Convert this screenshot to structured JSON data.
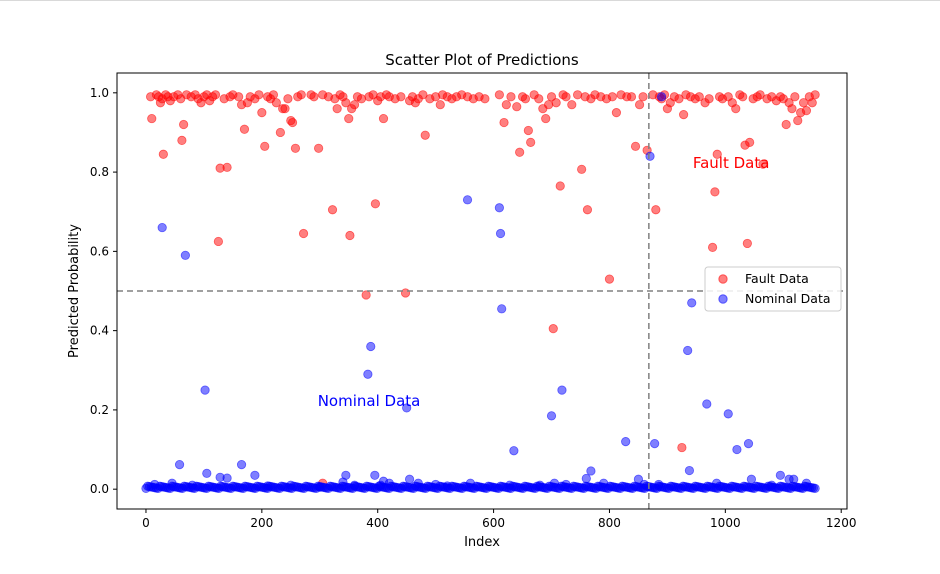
{
  "chart_data": {
    "type": "scatter",
    "title": "Scatter Plot of Predictions",
    "xlabel": "Index",
    "ylabel": "Predicted Probability",
    "xlim": [
      -50,
      1210
    ],
    "ylim": [
      -0.05,
      1.05
    ],
    "x_ticks": [
      0,
      200,
      400,
      600,
      800,
      1000,
      1200
    ],
    "y_ticks": [
      0.0,
      0.2,
      0.4,
      0.6,
      0.8,
      1.0
    ],
    "x_tick_labels": [
      "0",
      "200",
      "400",
      "600",
      "800",
      "1000",
      "1200"
    ],
    "y_tick_labels": [
      "0.0",
      "0.2",
      "0.4",
      "0.6",
      "0.8",
      "1.0"
    ],
    "threshold_y": 0.5,
    "split_x": 868,
    "annotations": [
      {
        "text": "Fault Data",
        "x": 1010,
        "y": 0.81,
        "color": "#ff0000"
      },
      {
        "text": "Nominal Data",
        "x": 385,
        "y": 0.21,
        "color": "#0000ff"
      }
    ],
    "legend": {
      "position": "center-right"
    },
    "grid": false,
    "series": [
      {
        "name": "Fault Data",
        "color": "#ff0000",
        "points": [
          [
            8,
            0.99
          ],
          [
            10,
            0.935
          ],
          [
            18,
            0.995
          ],
          [
            22,
            0.99
          ],
          [
            25,
            0.975
          ],
          [
            28,
            0.985
          ],
          [
            30,
            0.845
          ],
          [
            34,
            0.995
          ],
          [
            38,
            0.99
          ],
          [
            42,
            0.98
          ],
          [
            48,
            0.99
          ],
          [
            55,
            0.995
          ],
          [
            60,
            0.985
          ],
          [
            62,
            0.88
          ],
          [
            65,
            0.92
          ],
          [
            70,
            0.995
          ],
          [
            78,
            0.99
          ],
          [
            85,
            0.995
          ],
          [
            90,
            0.985
          ],
          [
            95,
            0.975
          ],
          [
            100,
            0.99
          ],
          [
            105,
            0.995
          ],
          [
            110,
            0.98
          ],
          [
            115,
            0.99
          ],
          [
            120,
            0.995
          ],
          [
            125,
            0.625
          ],
          [
            128,
            0.81
          ],
          [
            135,
            0.985
          ],
          [
            140,
            0.812
          ],
          [
            145,
            0.99
          ],
          [
            150,
            0.995
          ],
          [
            160,
            0.99
          ],
          [
            165,
            0.97
          ],
          [
            170,
            0.908
          ],
          [
            175,
            0.975
          ],
          [
            180,
            0.99
          ],
          [
            188,
            0.985
          ],
          [
            195,
            0.995
          ],
          [
            200,
            0.95
          ],
          [
            205,
            0.865
          ],
          [
            210,
            0.99
          ],
          [
            215,
            0.985
          ],
          [
            220,
            0.995
          ],
          [
            225,
            0.975
          ],
          [
            232,
            0.9
          ],
          [
            236,
            0.96
          ],
          [
            240,
            0.96
          ],
          [
            245,
            0.985
          ],
          [
            250,
            0.93
          ],
          [
            253,
            0.925
          ],
          [
            258,
            0.86
          ],
          [
            262,
            0.99
          ],
          [
            268,
            0.995
          ],
          [
            272,
            0.645
          ],
          [
            285,
            0.995
          ],
          [
            290,
            0.99
          ],
          [
            298,
            0.86
          ],
          [
            305,
            0.995
          ],
          [
            315,
            0.99
          ],
          [
            322,
            0.705
          ],
          [
            326,
            0.985
          ],
          [
            330,
            0.96
          ],
          [
            335,
            0.995
          ],
          [
            340,
            0.99
          ],
          [
            345,
            0.975
          ],
          [
            350,
            0.935
          ],
          [
            352,
            0.64
          ],
          [
            355,
            0.96
          ],
          [
            360,
            0.97
          ],
          [
            365,
            0.99
          ],
          [
            372,
            0.985
          ],
          [
            380,
            0.49
          ],
          [
            385,
            0.99
          ],
          [
            392,
            0.995
          ],
          [
            396,
            0.72
          ],
          [
            400,
            0.98
          ],
          [
            405,
            0.99
          ],
          [
            410,
            0.935
          ],
          [
            415,
            0.995
          ],
          [
            420,
            0.99
          ],
          [
            430,
            0.985
          ],
          [
            440,
            0.99
          ],
          [
            448,
            0.495
          ],
          [
            455,
            0.98
          ],
          [
            460,
            0.99
          ],
          [
            465,
            0.975
          ],
          [
            470,
            0.985
          ],
          [
            478,
            0.995
          ],
          [
            482,
            0.893
          ],
          [
            490,
            0.985
          ],
          [
            500,
            0.99
          ],
          [
            508,
            0.97
          ],
          [
            512,
            0.995
          ],
          [
            520,
            0.99
          ],
          [
            528,
            0.985
          ],
          [
            536,
            0.99
          ],
          [
            545,
            0.995
          ],
          [
            555,
            0.99
          ],
          [
            565,
            0.985
          ],
          [
            575,
            0.99
          ],
          [
            585,
            0.985
          ],
          [
            305,
            0.015
          ],
          [
            610,
            0.995
          ],
          [
            618,
            0.925
          ],
          [
            622,
            0.97
          ],
          [
            630,
            0.99
          ],
          [
            640,
            0.965
          ],
          [
            645,
            0.85
          ],
          [
            650,
            0.99
          ],
          [
            655,
            0.985
          ],
          [
            660,
            0.905
          ],
          [
            664,
            0.875
          ],
          [
            670,
            0.995
          ],
          [
            678,
            0.985
          ],
          [
            685,
            0.96
          ],
          [
            690,
            0.935
          ],
          [
            695,
            0.97
          ],
          [
            700,
            0.99
          ],
          [
            703,
            0.405
          ],
          [
            708,
            0.975
          ],
          [
            715,
            0.765
          ],
          [
            720,
            0.995
          ],
          [
            725,
            0.99
          ],
          [
            735,
            0.97
          ],
          [
            745,
            0.995
          ],
          [
            752,
            0.807
          ],
          [
            758,
            0.99
          ],
          [
            762,
            0.705
          ],
          [
            768,
            0.985
          ],
          [
            775,
            0.995
          ],
          [
            785,
            0.99
          ],
          [
            795,
            0.985
          ],
          [
            800,
            0.53
          ],
          [
            805,
            0.99
          ],
          [
            812,
            0.95
          ],
          [
            820,
            0.995
          ],
          [
            830,
            0.99
          ],
          [
            838,
            0.99
          ],
          [
            845,
            0.865
          ],
          [
            852,
            0.97
          ],
          [
            858,
            0.99
          ],
          [
            865,
            0.855
          ],
          [
            875,
            0.995
          ],
          [
            880,
            0.705
          ],
          [
            886,
            0.99
          ],
          [
            890,
            0.985
          ],
          [
            895,
            0.995
          ],
          [
            900,
            0.96
          ],
          [
            905,
            0.975
          ],
          [
            912,
            0.99
          ],
          [
            920,
            0.985
          ],
          [
            925,
            0.105
          ],
          [
            928,
            0.945
          ],
          [
            932,
            0.995
          ],
          [
            940,
            0.99
          ],
          [
            948,
            0.985
          ],
          [
            955,
            0.99
          ],
          [
            965,
            0.975
          ],
          [
            972,
            0.985
          ],
          [
            978,
            0.61
          ],
          [
            982,
            0.75
          ],
          [
            986,
            0.845
          ],
          [
            990,
            0.99
          ],
          [
            995,
            0.985
          ],
          [
            1005,
            0.99
          ],
          [
            1012,
            0.975
          ],
          [
            1018,
            0.96
          ],
          [
            1025,
            0.995
          ],
          [
            1030,
            0.99
          ],
          [
            1034,
            0.868
          ],
          [
            1038,
            0.62
          ],
          [
            1042,
            0.875
          ],
          [
            1048,
            0.985
          ],
          [
            1055,
            0.99
          ],
          [
            1060,
            0.995
          ],
          [
            1065,
            0.82
          ],
          [
            1072,
            0.985
          ],
          [
            1080,
            0.99
          ],
          [
            1088,
            0.98
          ],
          [
            1095,
            0.99
          ],
          [
            1100,
            0.985
          ],
          [
            1105,
            0.92
          ],
          [
            1110,
            0.975
          ],
          [
            1115,
            0.96
          ],
          [
            1120,
            0.99
          ],
          [
            1125,
            0.93
          ],
          [
            1130,
            0.95
          ],
          [
            1135,
            0.975
          ],
          [
            1140,
            0.955
          ],
          [
            1145,
            0.99
          ],
          [
            1150,
            0.975
          ],
          [
            1155,
            0.995
          ]
        ]
      },
      {
        "name": "Nominal Data",
        "color": "#0000ff",
        "points": [
          [
            28,
            0.66
          ],
          [
            58,
            0.062
          ],
          [
            68,
            0.59
          ],
          [
            102,
            0.25
          ],
          [
            105,
            0.04
          ],
          [
            128,
            0.03
          ],
          [
            140,
            0.028
          ],
          [
            165,
            0.062
          ],
          [
            188,
            0.035
          ],
          [
            15,
            0.012
          ],
          [
            45,
            0.015
          ],
          [
            80,
            0.01
          ],
          [
            210,
            0.008
          ],
          [
            250,
            0.01
          ],
          [
            300,
            0.005
          ],
          [
            340,
            0.018
          ],
          [
            345,
            0.035
          ],
          [
            360,
            0.01
          ],
          [
            383,
            0.29
          ],
          [
            388,
            0.36
          ],
          [
            395,
            0.035
          ],
          [
            405,
            0.01
          ],
          [
            410,
            0.02
          ],
          [
            420,
            0.015
          ],
          [
            450,
            0.205
          ],
          [
            455,
            0.025
          ],
          [
            470,
            0.015
          ],
          [
            500,
            0.012
          ],
          [
            520,
            0.008
          ],
          [
            555,
            0.73
          ],
          [
            560,
            0.015
          ],
          [
            610,
            0.71
          ],
          [
            612,
            0.645
          ],
          [
            614,
            0.455
          ],
          [
            628,
            0.01
          ],
          [
            635,
            0.097
          ],
          [
            680,
            0.01
          ],
          [
            700,
            0.185
          ],
          [
            705,
            0.015
          ],
          [
            718,
            0.25
          ],
          [
            725,
            0.012
          ],
          [
            760,
            0.027
          ],
          [
            768,
            0.046
          ],
          [
            790,
            0.015
          ],
          [
            828,
            0.12
          ],
          [
            850,
            0.025
          ],
          [
            860,
            0.012
          ],
          [
            870,
            0.84
          ],
          [
            878,
            0.115
          ],
          [
            885,
            0.012
          ],
          [
            890,
            0.99
          ],
          [
            935,
            0.35
          ],
          [
            938,
            0.047
          ],
          [
            942,
            0.47
          ],
          [
            968,
            0.215
          ],
          [
            985,
            0.015
          ],
          [
            1005,
            0.19
          ],
          [
            1020,
            0.1
          ],
          [
            1040,
            0.115
          ],
          [
            1045,
            0.025
          ],
          [
            1080,
            0.01
          ],
          [
            1095,
            0.035
          ],
          [
            1110,
            0.025
          ],
          [
            1118,
            0.025
          ],
          [
            1140,
            0.015
          ]
        ]
      }
    ]
  }
}
